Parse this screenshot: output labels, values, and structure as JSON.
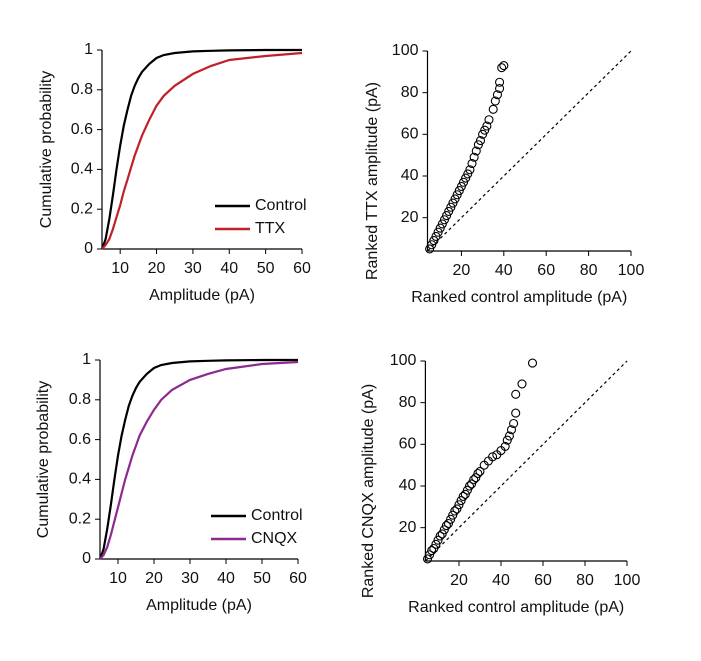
{
  "chart_data": [
    {
      "type": "line",
      "x_label": "Amplitude (pA)",
      "y_label": "Cumulative probability",
      "x": [
        5,
        6,
        7,
        8,
        9,
        10,
        11,
        12,
        13,
        14,
        15,
        16,
        18,
        20,
        22,
        25,
        30,
        35,
        40,
        50,
        60
      ],
      "series": [
        {
          "name": "Control",
          "color": "#000000",
          "values": [
            0,
            0.05,
            0.15,
            0.27,
            0.4,
            0.52,
            0.62,
            0.7,
            0.77,
            0.82,
            0.86,
            0.89,
            0.93,
            0.96,
            0.975,
            0.985,
            0.993,
            0.996,
            0.998,
            1,
            1
          ]
        },
        {
          "name": "TTX",
          "color": "#c0202a",
          "values": [
            0,
            0.02,
            0.05,
            0.1,
            0.16,
            0.22,
            0.29,
            0.35,
            0.41,
            0.47,
            0.52,
            0.57,
            0.65,
            0.72,
            0.77,
            0.82,
            0.88,
            0.92,
            0.95,
            0.97,
            0.985
          ]
        }
      ],
      "xlim": [
        5,
        60
      ],
      "ylim": [
        0,
        1
      ],
      "xticks": [
        10,
        20,
        30,
        40,
        50,
        60
      ],
      "yticks": [
        0,
        0.2,
        0.4,
        0.6,
        0.8,
        1
      ],
      "legend": "lower right"
    },
    {
      "type": "scatter",
      "x_label": "Ranked control amplitude (pA)",
      "y_label": "Ranked TTX amplitude (pA)",
      "x": [
        5,
        6,
        7,
        8,
        9,
        10,
        11,
        12,
        13,
        14,
        15,
        16,
        17,
        18,
        19,
        20,
        21,
        22,
        23,
        24,
        25,
        26,
        27,
        28,
        29,
        30,
        31,
        32,
        33,
        35,
        36,
        37,
        38,
        38,
        39,
        40
      ],
      "values": [
        5,
        7,
        9,
        11,
        13,
        15,
        17,
        19,
        21,
        23,
        25,
        27,
        29,
        31,
        33,
        35,
        37,
        39,
        41,
        43,
        46,
        49,
        52,
        55,
        57,
        60,
        62,
        64,
        67,
        72,
        76,
        79,
        82,
        85,
        92,
        93
      ],
      "color": "#000000",
      "identity_line": true,
      "xlim": [
        4,
        100
      ],
      "ylim": [
        4,
        100
      ],
      "xticks": [
        20,
        40,
        60,
        80,
        100
      ],
      "yticks": [
        20,
        40,
        60,
        80,
        100
      ]
    },
    {
      "type": "line",
      "x_label": "Amplitude (pA)",
      "y_label": "Cumulative probability",
      "x": [
        5,
        6,
        7,
        8,
        9,
        10,
        11,
        12,
        13,
        14,
        15,
        16,
        18,
        20,
        22,
        25,
        30,
        35,
        40,
        50,
        60
      ],
      "series": [
        {
          "name": "Control",
          "color": "#000000",
          "values": [
            0,
            0.05,
            0.15,
            0.27,
            0.4,
            0.52,
            0.62,
            0.7,
            0.77,
            0.82,
            0.86,
            0.89,
            0.93,
            0.96,
            0.975,
            0.985,
            0.993,
            0.996,
            0.998,
            1,
            1
          ]
        },
        {
          "name": "CNQX",
          "color": "#8b2b8f",
          "values": [
            0,
            0.02,
            0.06,
            0.12,
            0.19,
            0.26,
            0.33,
            0.4,
            0.46,
            0.52,
            0.57,
            0.62,
            0.69,
            0.75,
            0.8,
            0.85,
            0.9,
            0.93,
            0.955,
            0.98,
            0.99
          ]
        }
      ],
      "xlim": [
        5,
        60
      ],
      "ylim": [
        0,
        1
      ],
      "xticks": [
        10,
        20,
        30,
        40,
        50,
        60
      ],
      "yticks": [
        0,
        0.2,
        0.4,
        0.6,
        0.8,
        1
      ],
      "legend": "lower right"
    },
    {
      "type": "scatter",
      "x_label": "Ranked control amplitude (pA)",
      "y_label": "Ranked CNQX amplitude (pA)",
      "x": [
        5,
        6,
        7,
        8,
        9,
        10,
        11,
        12,
        13,
        14,
        15,
        16,
        17,
        18,
        19,
        20,
        21,
        22,
        23,
        24,
        25,
        26,
        27,
        28,
        29,
        30,
        32,
        34,
        36,
        38,
        40,
        42,
        43,
        44,
        45,
        46,
        47,
        47,
        50,
        55
      ],
      "values": [
        5,
        7,
        9,
        10,
        12,
        14,
        16,
        17,
        19,
        21,
        22,
        24,
        26,
        28,
        29,
        31,
        33,
        35,
        36,
        38,
        40,
        41,
        43,
        44,
        46,
        47,
        50,
        52,
        54,
        55,
        57,
        59,
        62,
        64,
        67,
        70,
        75,
        84,
        89,
        99
      ],
      "color": "#000000",
      "identity_line": true,
      "xlim": [
        4,
        100
      ],
      "ylim": [
        4,
        100
      ],
      "xticks": [
        20,
        40,
        60,
        80,
        100
      ],
      "yticks": [
        20,
        40,
        60,
        80,
        100
      ]
    }
  ]
}
